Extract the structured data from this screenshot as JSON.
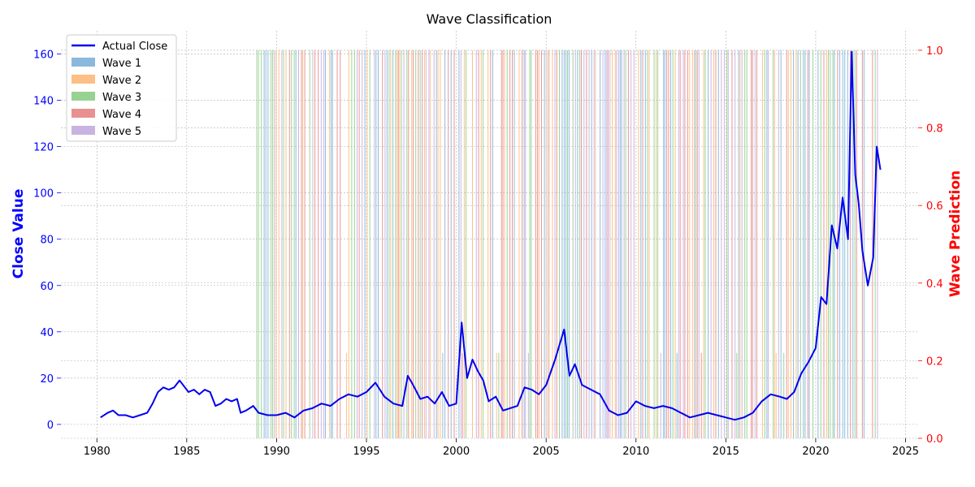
{
  "chart_data": {
    "type": "line",
    "title": "Wave Classification",
    "xlabel": "",
    "ylabel_left": "Close Value",
    "ylabel_right": "Wave Prediction",
    "x_ticks": [
      "1980",
      "1985",
      "1990",
      "1995",
      "2000",
      "2005",
      "2010",
      "2015",
      "2020",
      "2025"
    ],
    "y_left_ticks": [
      "0",
      "20",
      "40",
      "60",
      "80",
      "100",
      "120",
      "140",
      "160"
    ],
    "y_right_ticks": [
      "0.0",
      "0.2",
      "0.4",
      "0.6",
      "0.8",
      "1.0"
    ],
    "xlim": [
      1978.0,
      2025.7
    ],
    "ylim_left": [
      -6,
      170
    ],
    "ylim_right": [
      0,
      1.05
    ],
    "grid": true,
    "legend_position": "top-left",
    "colors": {
      "actual_close": "#0000ee",
      "left_axis": "#0000ff",
      "right_axis": "#ff0000",
      "wave1": "#8bb8dc",
      "wave2": "#fcbf85",
      "wave3": "#97d292",
      "wave4": "#e89190",
      "wave5": "#c9b3e0"
    },
    "series": [
      {
        "name": "Actual Close",
        "axis": "left",
        "x": [
          1980.2,
          1980.6,
          1980.9,
          1981.2,
          1981.6,
          1982.0,
          1982.4,
          1982.8,
          1983.1,
          1983.4,
          1983.7,
          1984.0,
          1984.3,
          1984.6,
          1984.9,
          1985.1,
          1985.4,
          1985.7,
          1986.0,
          1986.3,
          1986.6,
          1986.9,
          1987.2,
          1987.5,
          1987.8,
          1988.0,
          1988.3,
          1988.7,
          1989.0,
          1989.5,
          1990.0,
          1990.5,
          1991.0,
          1991.5,
          1992.0,
          1992.5,
          1993.0,
          1993.5,
          1994.0,
          1994.5,
          1995.0,
          1995.5,
          1996.0,
          1996.5,
          1997.0,
          1997.3,
          1997.6,
          1998.0,
          1998.4,
          1998.8,
          1999.2,
          1999.6,
          2000.0,
          2000.3,
          2000.6,
          2000.9,
          2001.2,
          2001.5,
          2001.8,
          2002.2,
          2002.6,
          2003.0,
          2003.4,
          2003.8,
          2004.2,
          2004.6,
          2005.0,
          2005.5,
          2006.0,
          2006.3,
          2006.6,
          2007.0,
          2007.5,
          2008.0,
          2008.5,
          2009.0,
          2009.5,
          2010.0,
          2010.5,
          2011.0,
          2011.5,
          2012.0,
          2012.5,
          2013.0,
          2013.5,
          2014.0,
          2014.5,
          2015.0,
          2015.5,
          2016.0,
          2016.5,
          2017.0,
          2017.5,
          2018.0,
          2018.4,
          2018.8,
          2019.2,
          2019.6,
          2020.0,
          2020.3,
          2020.6,
          2020.9,
          2021.2,
          2021.5,
          2021.8,
          2022.0,
          2022.2,
          2022.4,
          2022.6,
          2022.9,
          2023.2,
          2023.4,
          2023.6
        ],
        "values": [
          3,
          5,
          6,
          4,
          4,
          3,
          4,
          5,
          9,
          14,
          16,
          15,
          16,
          19,
          16,
          14,
          15,
          13,
          15,
          14,
          8,
          9,
          11,
          10,
          11,
          5,
          6,
          8,
          5,
          4,
          4,
          5,
          3,
          6,
          7,
          9,
          8,
          11,
          13,
          12,
          14,
          18,
          12,
          9,
          8,
          21,
          17,
          11,
          12,
          9,
          14,
          8,
          9,
          44,
          20,
          28,
          23,
          19,
          10,
          12,
          6,
          7,
          8,
          16,
          15,
          13,
          17,
          28,
          41,
          21,
          26,
          17,
          15,
          13,
          6,
          4,
          5,
          10,
          8,
          7,
          8,
          7,
          5,
          3,
          4,
          5,
          4,
          3,
          2,
          3,
          5,
          10,
          13,
          12,
          11,
          14,
          22,
          27,
          33,
          55,
          52,
          86,
          76,
          98,
          80,
          161,
          108,
          95,
          75,
          60,
          72,
          120,
          110
        ]
      }
    ],
    "wave_series": [
      {
        "name": "Wave 1",
        "value": 1.0
      },
      {
        "name": "Wave 2",
        "value": 1.0
      },
      {
        "name": "Wave 3",
        "value": 1.0
      },
      {
        "name": "Wave 4",
        "value": 1.0
      },
      {
        "name": "Wave 5",
        "value": 1.0
      }
    ],
    "wave_start": 1988.9,
    "wave_end": 2023.6
  }
}
